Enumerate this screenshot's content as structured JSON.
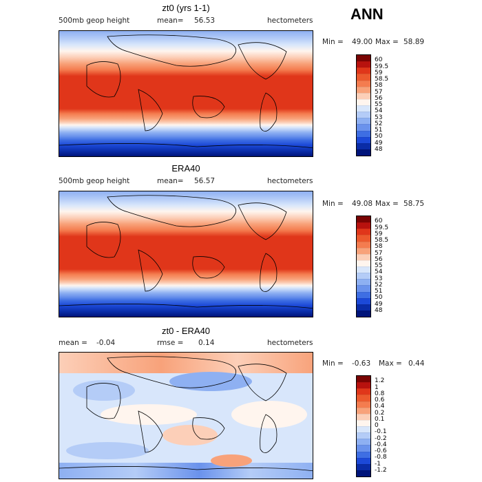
{
  "season": "ANN",
  "panels": [
    {
      "title": "zt0 (yrs 1-1)",
      "left_label": "500mb geop height",
      "mean_label": "mean=",
      "mean_value": "56.53",
      "units": "hectometers",
      "min_label": "Min =",
      "min_value": "49.00",
      "max_label": "Max =",
      "max_value": "58.89",
      "levels": [
        "60",
        "59.5",
        "59",
        "58.5",
        "58",
        "57",
        "56",
        "55",
        "54",
        "53",
        "52",
        "51",
        "50",
        "49",
        "48"
      ],
      "colors": [
        "#7a0403",
        "#b8120e",
        "#e0361a",
        "#ec5a2e",
        "#f47c4f",
        "#f8a27a",
        "#fccfb8",
        "#fff5ee",
        "#d8e6fb",
        "#b4ccf7",
        "#8eb0f2",
        "#6a92ec",
        "#3e6ee3",
        "#1c49d8",
        "#0a2ca7",
        "#00147a"
      ]
    },
    {
      "title": "ERA40",
      "left_label": "500mb geop height",
      "mean_label": "mean=",
      "mean_value": "56.57",
      "units": "hectometers",
      "min_label": "Min =",
      "min_value": "49.08",
      "max_label": "Max =",
      "max_value": "58.75",
      "levels": [
        "60",
        "59.5",
        "59",
        "58.5",
        "58",
        "57",
        "56",
        "55",
        "54",
        "53",
        "52",
        "51",
        "50",
        "49",
        "48"
      ],
      "colors": [
        "#7a0403",
        "#b8120e",
        "#e0361a",
        "#ec5a2e",
        "#f47c4f",
        "#f8a27a",
        "#fccfb8",
        "#fff5ee",
        "#d8e6fb",
        "#b4ccf7",
        "#8eb0f2",
        "#6a92ec",
        "#3e6ee3",
        "#1c49d8",
        "#0a2ca7",
        "#00147a"
      ]
    },
    {
      "title": "zt0 - ERA40",
      "left_label": "mean =",
      "left_value": "-0.04",
      "mean_label": "rmse =",
      "mean_value": "0.14",
      "units": "hectometers",
      "min_label": "Min =",
      "min_value": "-0.63",
      "max_label": "Max =",
      "max_value": "0.44",
      "levels": [
        "1.2",
        "1",
        "0.8",
        "0.6",
        "0.4",
        "0.2",
        "0.1",
        "0",
        "-0.1",
        "-0.2",
        "-0.4",
        "-0.6",
        "-0.8",
        "-1",
        "-1.2"
      ],
      "colors": [
        "#7a0403",
        "#b8120e",
        "#e0361a",
        "#ec5a2e",
        "#f47c4f",
        "#f8a27a",
        "#fccfb8",
        "#fff5ee",
        "#d8e6fb",
        "#b4ccf7",
        "#8eb0f2",
        "#6a92ec",
        "#3e6ee3",
        "#1c49d8",
        "#0a2ca7",
        "#00147a"
      ]
    }
  ]
}
